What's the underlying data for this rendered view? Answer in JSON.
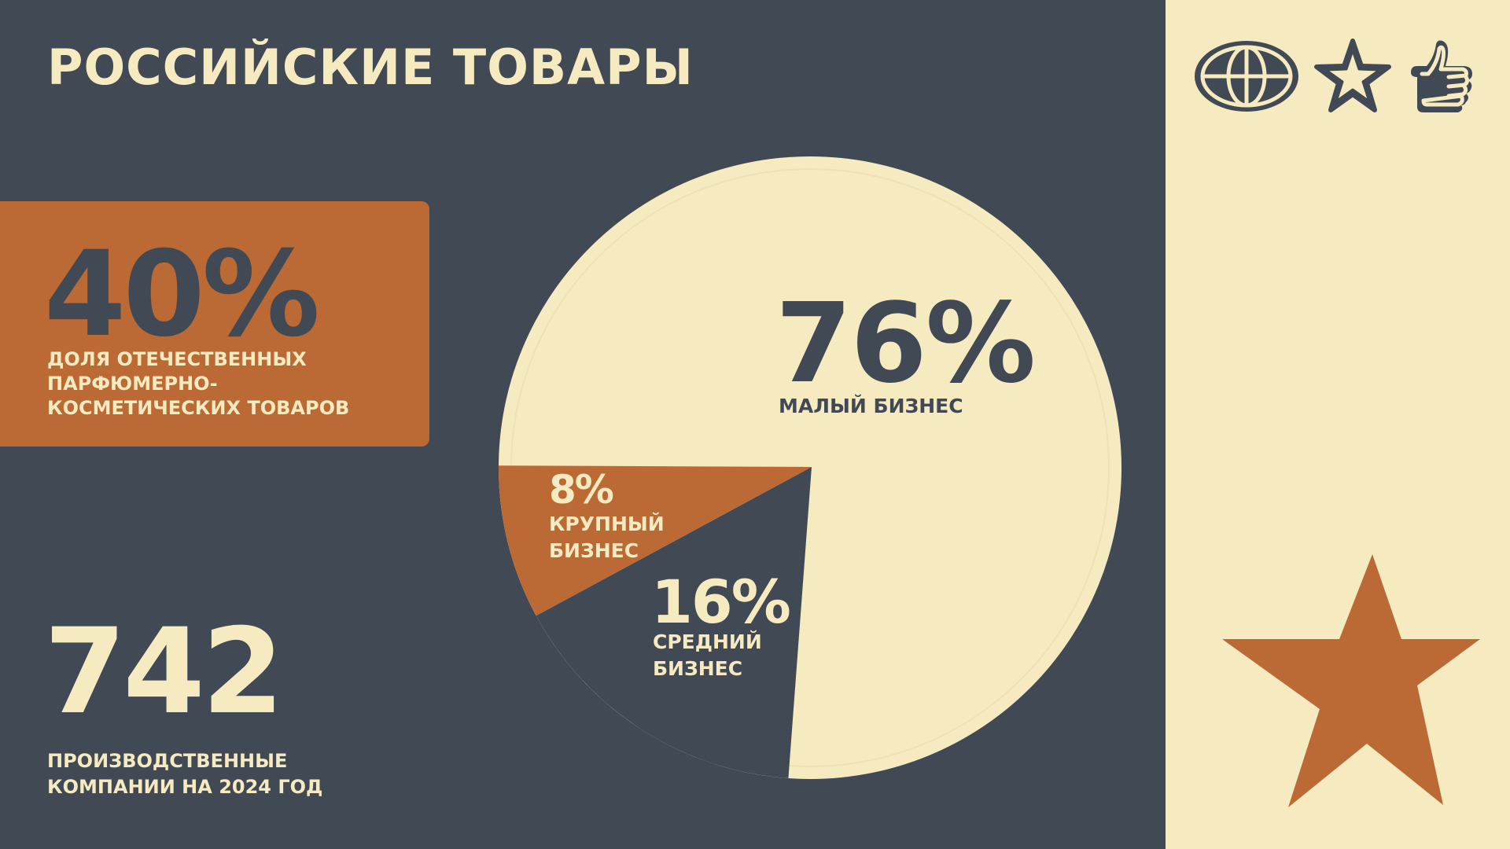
{
  "title": "РОССИЙСКИЕ ТОВАРЫ",
  "colors": {
    "background": "#414954",
    "cream": "#F6EAC0",
    "accent": "#BB6A35"
  },
  "share_card": {
    "value": "40%",
    "caption": "ДОЛЯ ОТЕЧЕСТВЕННЫХ\nПАРФЮМЕРНО-\nКОСМЕТИЧЕСКИХ  ТОВАРОВ"
  },
  "companies": {
    "value": "742",
    "caption": "ПРОИЗВОДСТВЕННЫЕ\nКОМПАНИИ НА 2024 ГОД"
  },
  "icons": [
    "globe-icon",
    "star-icon",
    "thumbs-up-icon"
  ],
  "decor": [
    "star-icon"
  ],
  "chart_data": {
    "type": "pie",
    "title": "",
    "slices": [
      {
        "label": "МАЛЫЙ БИЗНЕС",
        "value": 76,
        "display": "76%",
        "color": "#F6EAC0"
      },
      {
        "label": "СРЕДНИЙ\nБИЗНЕС",
        "value": 16,
        "display": "16%",
        "color": "#414954"
      },
      {
        "label": "КРУПНЫЙ\nБИЗНЕС",
        "value": 8,
        "display": "8%",
        "color": "#BB6A35"
      }
    ]
  }
}
